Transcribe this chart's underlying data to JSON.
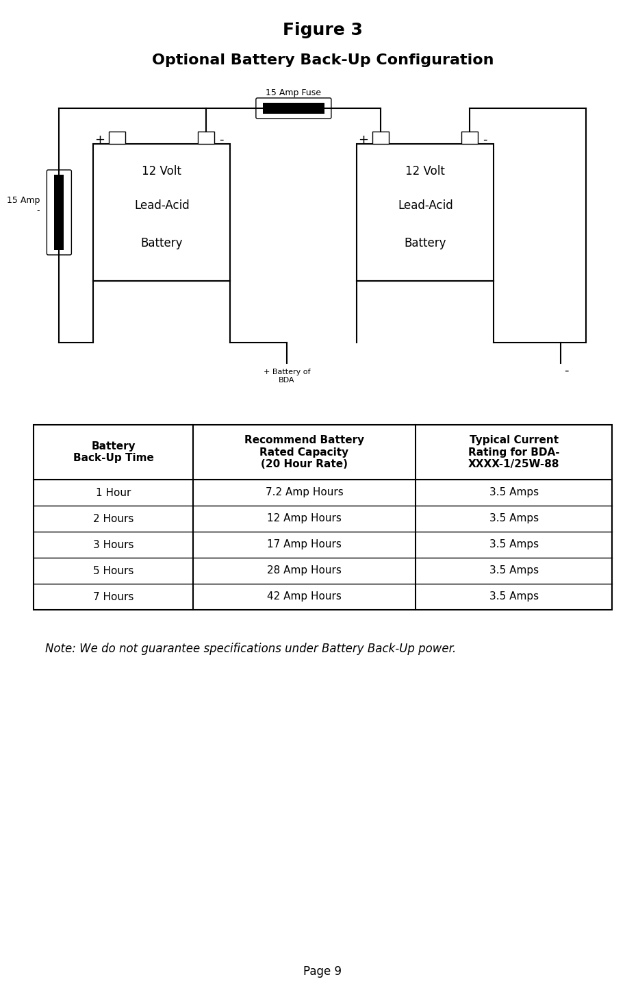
{
  "title1": "Figure 3",
  "title2": "Optional Battery Back-Up Configuration",
  "fig_width": 9.01,
  "fig_height": 14.41,
  "background_color": "#ffffff",
  "table_headers": [
    "Battery\nBack-Up Time",
    "Recommend Battery\nRated Capacity\n(20 Hour Rate)",
    "Typical Current\nRating for BDA-\nXXXX-1/25W-88"
  ],
  "table_rows": [
    [
      "1 Hour",
      "7.2 Amp Hours",
      "3.5 Amps"
    ],
    [
      "2 Hours",
      "12 Amp Hours",
      "3.5 Amps"
    ],
    [
      "3 Hours",
      "17 Amp Hours",
      "3.5 Amps"
    ],
    [
      "5 Hours",
      "28 Amp Hours",
      "3.5 Amps"
    ],
    [
      "7 Hours",
      "42 Amp Hours",
      "3.5 Amps"
    ]
  ],
  "note_text": "Note: We do not guarantee specifications under Battery Back-Up power.",
  "page_text": "Page 9",
  "fuse_label": "15 Amp Fuse",
  "left_fuse_label": "15 Amp\n-",
  "bda_label": "+ Battery of\nBDA",
  "minus_label": "-",
  "battery1_text": [
    "12 Volt",
    "Lead-Acid",
    "Battery"
  ],
  "battery2_text": [
    "12 Volt",
    "Lead-Acid",
    "Battery"
  ]
}
